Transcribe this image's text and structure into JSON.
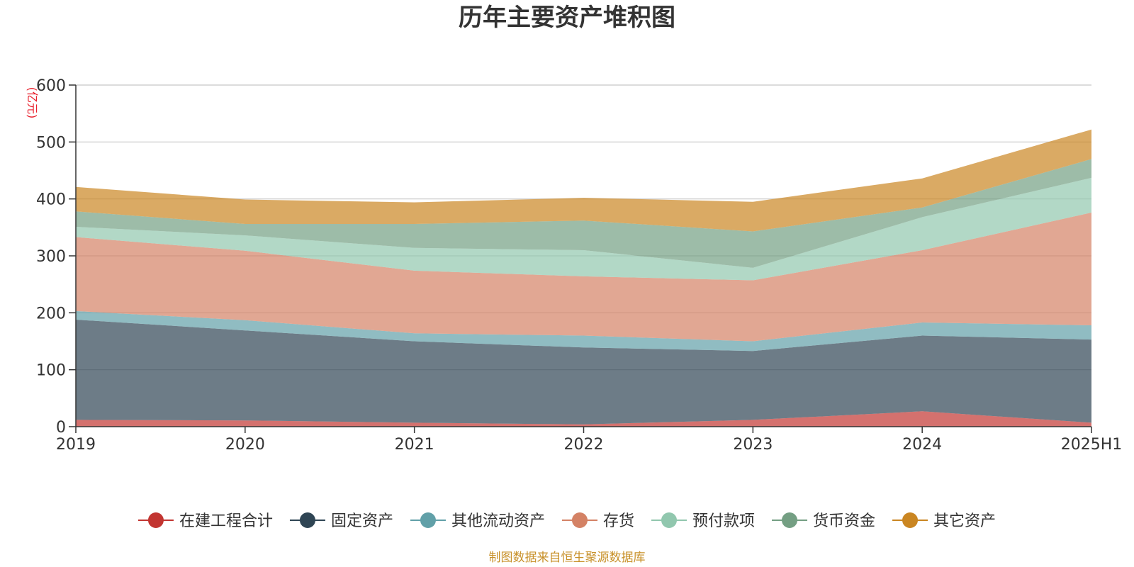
{
  "chart_data": {
    "type": "area",
    "stacked": true,
    "title": "历年主要资产堆积图",
    "unit_label": "(亿元)",
    "x": [
      "2019",
      "2020",
      "2021",
      "2022",
      "2023",
      "2024",
      "2025H1"
    ],
    "ylim": [
      0,
      600
    ],
    "yticks": [
      0,
      100,
      200,
      300,
      400,
      500,
      600
    ],
    "grid": true,
    "legend_position": "bottom",
    "series": [
      {
        "name": "在建工程合计",
        "color": "#c23531",
        "values": [
          12,
          11,
          7,
          4,
          12,
          27,
          7
        ]
      },
      {
        "name": "固定资产",
        "color": "#2f4554",
        "values": [
          176,
          158,
          143,
          135,
          121,
          133,
          146
        ]
      },
      {
        "name": "其他流动资产",
        "color": "#61a0a8",
        "values": [
          15,
          18,
          14,
          21,
          17,
          23,
          25
        ]
      },
      {
        "name": "存货",
        "color": "#d48265",
        "values": [
          130,
          122,
          110,
          104,
          107,
          127,
          198
        ]
      },
      {
        "name": "预付款项",
        "color": "#91c7ae",
        "values": [
          18,
          27,
          40,
          46,
          22,
          58,
          61
        ]
      },
      {
        "name": "货币资金",
        "color": "#749f83",
        "values": [
          27,
          20,
          42,
          52,
          64,
          17,
          33
        ]
      },
      {
        "name": "其它资产",
        "color": "#ca8622",
        "values": [
          43,
          43,
          38,
          40,
          52,
          51,
          52
        ]
      }
    ]
  },
  "source": "制图数据来自恒生聚源数据库"
}
